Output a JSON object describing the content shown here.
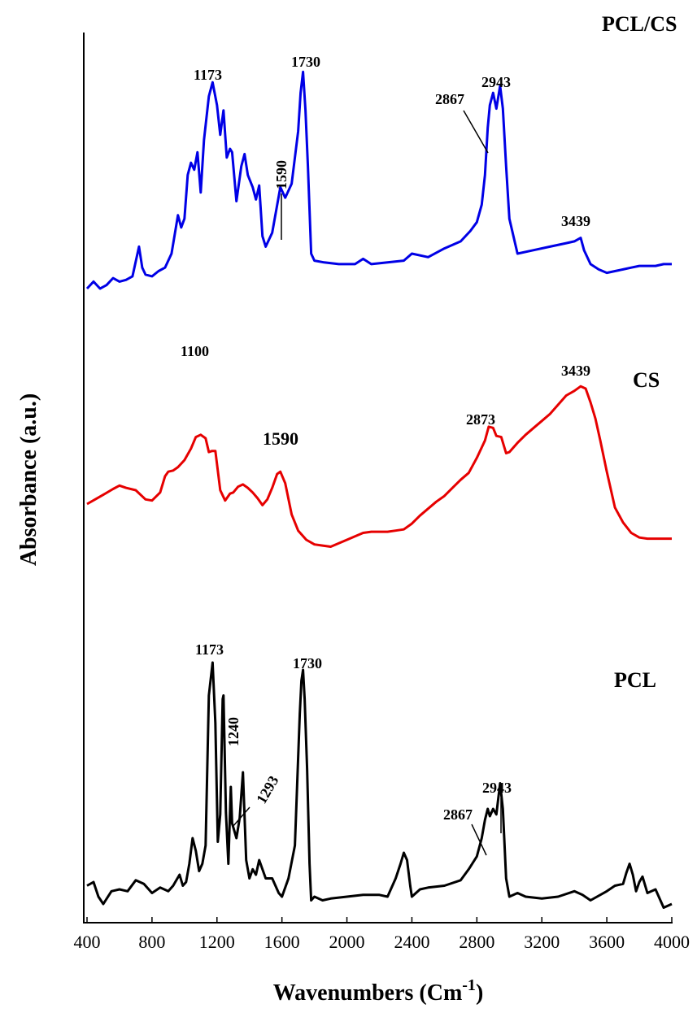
{
  "chart_data": {
    "type": "line",
    "xlabel": "Wavenumbers (Cm",
    "xlabel_sup": "-1",
    "xlabel_close": ")",
    "ylabel": "Absorbance (a.u.)",
    "xlim": [
      400,
      4000
    ],
    "x_ticks": [
      400,
      800,
      1200,
      1600,
      2000,
      2400,
      2800,
      3200,
      3600,
      4000
    ],
    "y_ticks": "none",
    "grid": false,
    "series": [
      {
        "name": "PCL/CS",
        "color": "#0000e6",
        "x": [
          400,
          440,
          480,
          520,
          560,
          600,
          640,
          680,
          720,
          740,
          760,
          800,
          840,
          880,
          920,
          960,
          980,
          1000,
          1020,
          1040,
          1060,
          1080,
          1100,
          1120,
          1150,
          1173,
          1200,
          1220,
          1240,
          1260,
          1280,
          1293,
          1320,
          1350,
          1370,
          1390,
          1420,
          1440,
          1460,
          1480,
          1500,
          1540,
          1590,
          1620,
          1660,
          1700,
          1715,
          1730,
          1745,
          1760,
          1780,
          1800,
          1860,
          1950,
          2050,
          2100,
          2150,
          2250,
          2350,
          2400,
          2500,
          2600,
          2700,
          2760,
          2800,
          2830,
          2850,
          2867,
          2880,
          2900,
          2920,
          2943,
          2960,
          2980,
          3000,
          3050,
          3150,
          3250,
          3350,
          3400,
          3439,
          3460,
          3500,
          3550,
          3600,
          3650,
          3700,
          3750,
          3800,
          3850,
          3900,
          3950,
          4000
        ],
        "y": [
          0,
          4,
          0,
          2,
          6,
          4,
          5,
          7,
          24,
          12,
          8,
          7,
          10,
          12,
          20,
          42,
          35,
          40,
          65,
          72,
          68,
          78,
          55,
          85,
          110,
          118,
          105,
          88,
          102,
          75,
          80,
          78,
          50,
          70,
          77,
          65,
          58,
          51,
          59,
          30,
          24,
          32,
          58,
          52,
          60,
          90,
          112,
          124,
          102,
          70,
          20,
          16,
          15,
          14,
          14,
          17,
          14,
          15,
          16,
          20,
          18,
          23,
          27,
          33,
          38,
          48,
          65,
          92,
          105,
          112,
          103,
          116,
          103,
          70,
          40,
          20,
          22,
          24,
          26,
          27,
          29,
          22,
          14,
          11,
          9,
          10,
          11,
          12,
          13,
          13,
          13,
          14,
          14
        ]
      },
      {
        "name": "CS",
        "color": "#e60000",
        "x": [
          400,
          450,
          500,
          560,
          600,
          640,
          700,
          760,
          800,
          850,
          880,
          900,
          930,
          960,
          1000,
          1040,
          1070,
          1100,
          1130,
          1150,
          1170,
          1190,
          1220,
          1250,
          1280,
          1300,
          1330,
          1360,
          1390,
          1420,
          1450,
          1480,
          1510,
          1540,
          1570,
          1590,
          1620,
          1660,
          1700,
          1750,
          1800,
          1850,
          1900,
          1950,
          2000,
          2050,
          2100,
          2150,
          2200,
          2250,
          2300,
          2350,
          2400,
          2450,
          2500,
          2550,
          2600,
          2650,
          2700,
          2750,
          2800,
          2850,
          2873,
          2900,
          2920,
          2950,
          2980,
          3000,
          3050,
          3100,
          3150,
          3200,
          3250,
          3300,
          3350,
          3400,
          3439,
          3470,
          3500,
          3530,
          3560,
          3600,
          3650,
          3700,
          3750,
          3800,
          3850,
          3900,
          3950,
          4000
        ],
        "y": [
          0,
          4,
          8,
          13,
          16,
          14,
          12,
          4,
          3,
          10,
          24,
          28,
          29,
          32,
          38,
          48,
          58,
          60,
          57,
          45,
          46,
          46,
          12,
          3,
          9,
          10,
          15,
          17,
          14,
          10,
          5,
          -1,
          4,
          14,
          26,
          28,
          18,
          -9,
          -23,
          -31,
          -35,
          -36,
          -37,
          -34,
          -31,
          -28,
          -25,
          -24,
          -24,
          -24,
          -23,
          -22,
          -17,
          -10,
          -4,
          2,
          7,
          14,
          21,
          27,
          40,
          55,
          67,
          66,
          59,
          58,
          44,
          45,
          53,
          60,
          66,
          72,
          78,
          86,
          94,
          98,
          102,
          100,
          88,
          74,
          55,
          28,
          -3,
          -16,
          -25,
          -29,
          -30,
          -30,
          -30,
          -30
        ]
      },
      {
        "name": "PCL",
        "color": "#000000",
        "x": [
          400,
          440,
          470,
          500,
          550,
          600,
          650,
          700,
          750,
          800,
          850,
          900,
          930,
          950,
          970,
          990,
          1010,
          1030,
          1050,
          1070,
          1090,
          1110,
          1130,
          1150,
          1173,
          1190,
          1205,
          1220,
          1235,
          1240,
          1255,
          1270,
          1285,
          1293,
          1300,
          1320,
          1340,
          1360,
          1380,
          1400,
          1420,
          1440,
          1460,
          1480,
          1500,
          1540,
          1580,
          1600,
          1640,
          1680,
          1710,
          1720,
          1730,
          1740,
          1755,
          1770,
          1780,
          1800,
          1850,
          1900,
          2000,
          2100,
          2200,
          2250,
          2300,
          2330,
          2350,
          2370,
          2390,
          2400,
          2450,
          2500,
          2600,
          2700,
          2750,
          2800,
          2830,
          2850,
          2867,
          2880,
          2900,
          2920,
          2943,
          2960,
          2980,
          3000,
          3050,
          3100,
          3200,
          3300,
          3400,
          3450,
          3500,
          3600,
          3650,
          3700,
          3720,
          3740,
          3760,
          3780,
          3800,
          3820,
          3850,
          3900,
          3950,
          4000
        ],
        "y": [
          6,
          8,
          0,
          -4,
          3,
          4,
          3,
          9,
          7,
          2,
          5,
          3,
          6,
          9,
          12,
          6,
          8,
          18,
          32,
          25,
          14,
          18,
          28,
          110,
          128,
          95,
          30,
          45,
          108,
          110,
          46,
          18,
          60,
          40,
          38,
          32,
          43,
          68,
          20,
          10,
          15,
          12,
          20,
          15,
          10,
          10,
          2,
          0,
          10,
          28,
          100,
          118,
          124,
          108,
          70,
          18,
          -2,
          0,
          -2,
          -1,
          0,
          1,
          1,
          0,
          10,
          18,
          24,
          20,
          6,
          0,
          4,
          5,
          6,
          9,
          15,
          22,
          32,
          42,
          48,
          44,
          48,
          45,
          62,
          48,
          10,
          0,
          2,
          0,
          -1,
          0,
          3,
          1,
          -2,
          3,
          6,
          7,
          13,
          18,
          12,
          3,
          8,
          11,
          2,
          4,
          -6,
          -4
        ]
      }
    ],
    "series_labels": [
      "PCL/CS",
      "CS",
      "PCL"
    ],
    "annotations": [
      {
        "series": "PCL/CS",
        "text": "1173"
      },
      {
        "series": "PCL/CS",
        "text": "1730"
      },
      {
        "series": "PCL/CS",
        "text": "1590"
      },
      {
        "series": "PCL/CS",
        "text": "2867"
      },
      {
        "series": "PCL/CS",
        "text": "2943"
      },
      {
        "series": "PCL/CS",
        "text": "3439"
      },
      {
        "series": "CS",
        "text": "1100"
      },
      {
        "series": "CS",
        "text": "1590"
      },
      {
        "series": "CS",
        "text": "2873"
      },
      {
        "series": "CS",
        "text": "3439"
      },
      {
        "series": "PCL",
        "text": "1173"
      },
      {
        "series": "PCL",
        "text": "1730"
      },
      {
        "series": "PCL",
        "text": "1240"
      },
      {
        "series": "PCL",
        "text": "1293"
      },
      {
        "series": "PCL",
        "text": "2867"
      },
      {
        "series": "PCL",
        "text": "2943"
      }
    ]
  }
}
